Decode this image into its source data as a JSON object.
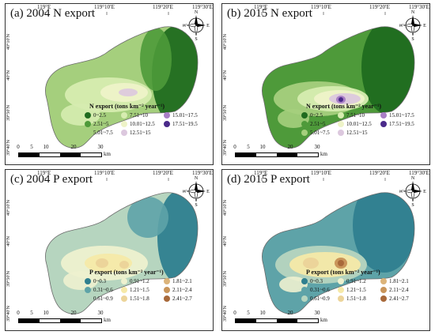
{
  "panels": [
    {
      "title": "(a) 2004 N export",
      "legend_title": "N export (tons km⁻² year⁻¹)",
      "legend": [
        {
          "label": "0~2.5",
          "color": "#1f6b1f"
        },
        {
          "label": "7.51~10",
          "color": "#d6ecb0"
        },
        {
          "label": "15.01~17.5",
          "color": "#a97fc6"
        },
        {
          "label": "2.51~5",
          "color": "#4e9a3a"
        },
        {
          "label": "10.01~12.5",
          "color": "#eef3c8"
        },
        {
          "label": "17.51~19.5",
          "color": "#4a2a8a"
        },
        {
          "label": "5.01~7.5",
          "color": "#a5cf7d"
        },
        {
          "label": "12.51~15",
          "color": "#dcc8de"
        }
      ]
    },
    {
      "title": "(b) 2015 N export",
      "legend_title": "N export (tons km⁻² year⁻¹)",
      "legend": [
        {
          "label": "0~2.5",
          "color": "#1f6b1f"
        },
        {
          "label": "7.51~10",
          "color": "#d6ecb0"
        },
        {
          "label": "15.01~17.5",
          "color": "#a97fc6"
        },
        {
          "label": "2.51~5",
          "color": "#4e9a3a"
        },
        {
          "label": "10.01~12.5",
          "color": "#eef3c8"
        },
        {
          "label": "17.51~19.5",
          "color": "#4a2a8a"
        },
        {
          "label": "5.01~7.5",
          "color": "#a5cf7d"
        },
        {
          "label": "12.51~15",
          "color": "#dcc8de"
        }
      ]
    },
    {
      "title": "(c) 2004 P export",
      "legend_title": "P export (tons km⁻² year⁻¹)",
      "legend": [
        {
          "label": "0~0.3",
          "color": "#2f7f8f"
        },
        {
          "label": "0.91~1.2",
          "color": "#eef1cf"
        },
        {
          "label": "1.81~2.1",
          "color": "#dcb47a"
        },
        {
          "label": "0.31~0.6",
          "color": "#5ea3a8"
        },
        {
          "label": "1.21~1.5",
          "color": "#f6e9a8"
        },
        {
          "label": "2.11~2.4",
          "color": "#c9955a"
        },
        {
          "label": "0.61~0.9",
          "color": "#b6d5bf"
        },
        {
          "label": "1.51~1.8",
          "color": "#ecd49a"
        },
        {
          "label": "2.41~2.7",
          "color": "#a8693a"
        }
      ]
    },
    {
      "title": "(d) 2015 P export",
      "legend_title": "P export (tons km⁻² year⁻¹)",
      "legend": [
        {
          "label": "0~0.3",
          "color": "#2f7f8f"
        },
        {
          "label": "0.91~1.2",
          "color": "#eef1cf"
        },
        {
          "label": "1.81~2.1",
          "color": "#dcb47a"
        },
        {
          "label": "0.31~0.6",
          "color": "#5ea3a8"
        },
        {
          "label": "1.21~1.5",
          "color": "#f6e9a8"
        },
        {
          "label": "2.11~2.4",
          "color": "#c9955a"
        },
        {
          "label": "0.61~0.9",
          "color": "#b6d5bf"
        },
        {
          "label": "1.51~1.8",
          "color": "#ecd49a"
        },
        {
          "label": "2.41~2.7",
          "color": "#a8693a"
        }
      ]
    }
  ],
  "axes": {
    "lon": [
      "119°E",
      "119°10′E",
      "119°20′E",
      "119°30′E"
    ],
    "lat": [
      "40°10′N",
      "40°N",
      "39°50′N",
      "39°40′N"
    ]
  },
  "compass": {
    "n": "N",
    "s": "S",
    "e": "E",
    "w": "W"
  },
  "scale": {
    "ticks": [
      "0",
      "5",
      "10",
      "20",
      "30"
    ],
    "unit": "km"
  }
}
